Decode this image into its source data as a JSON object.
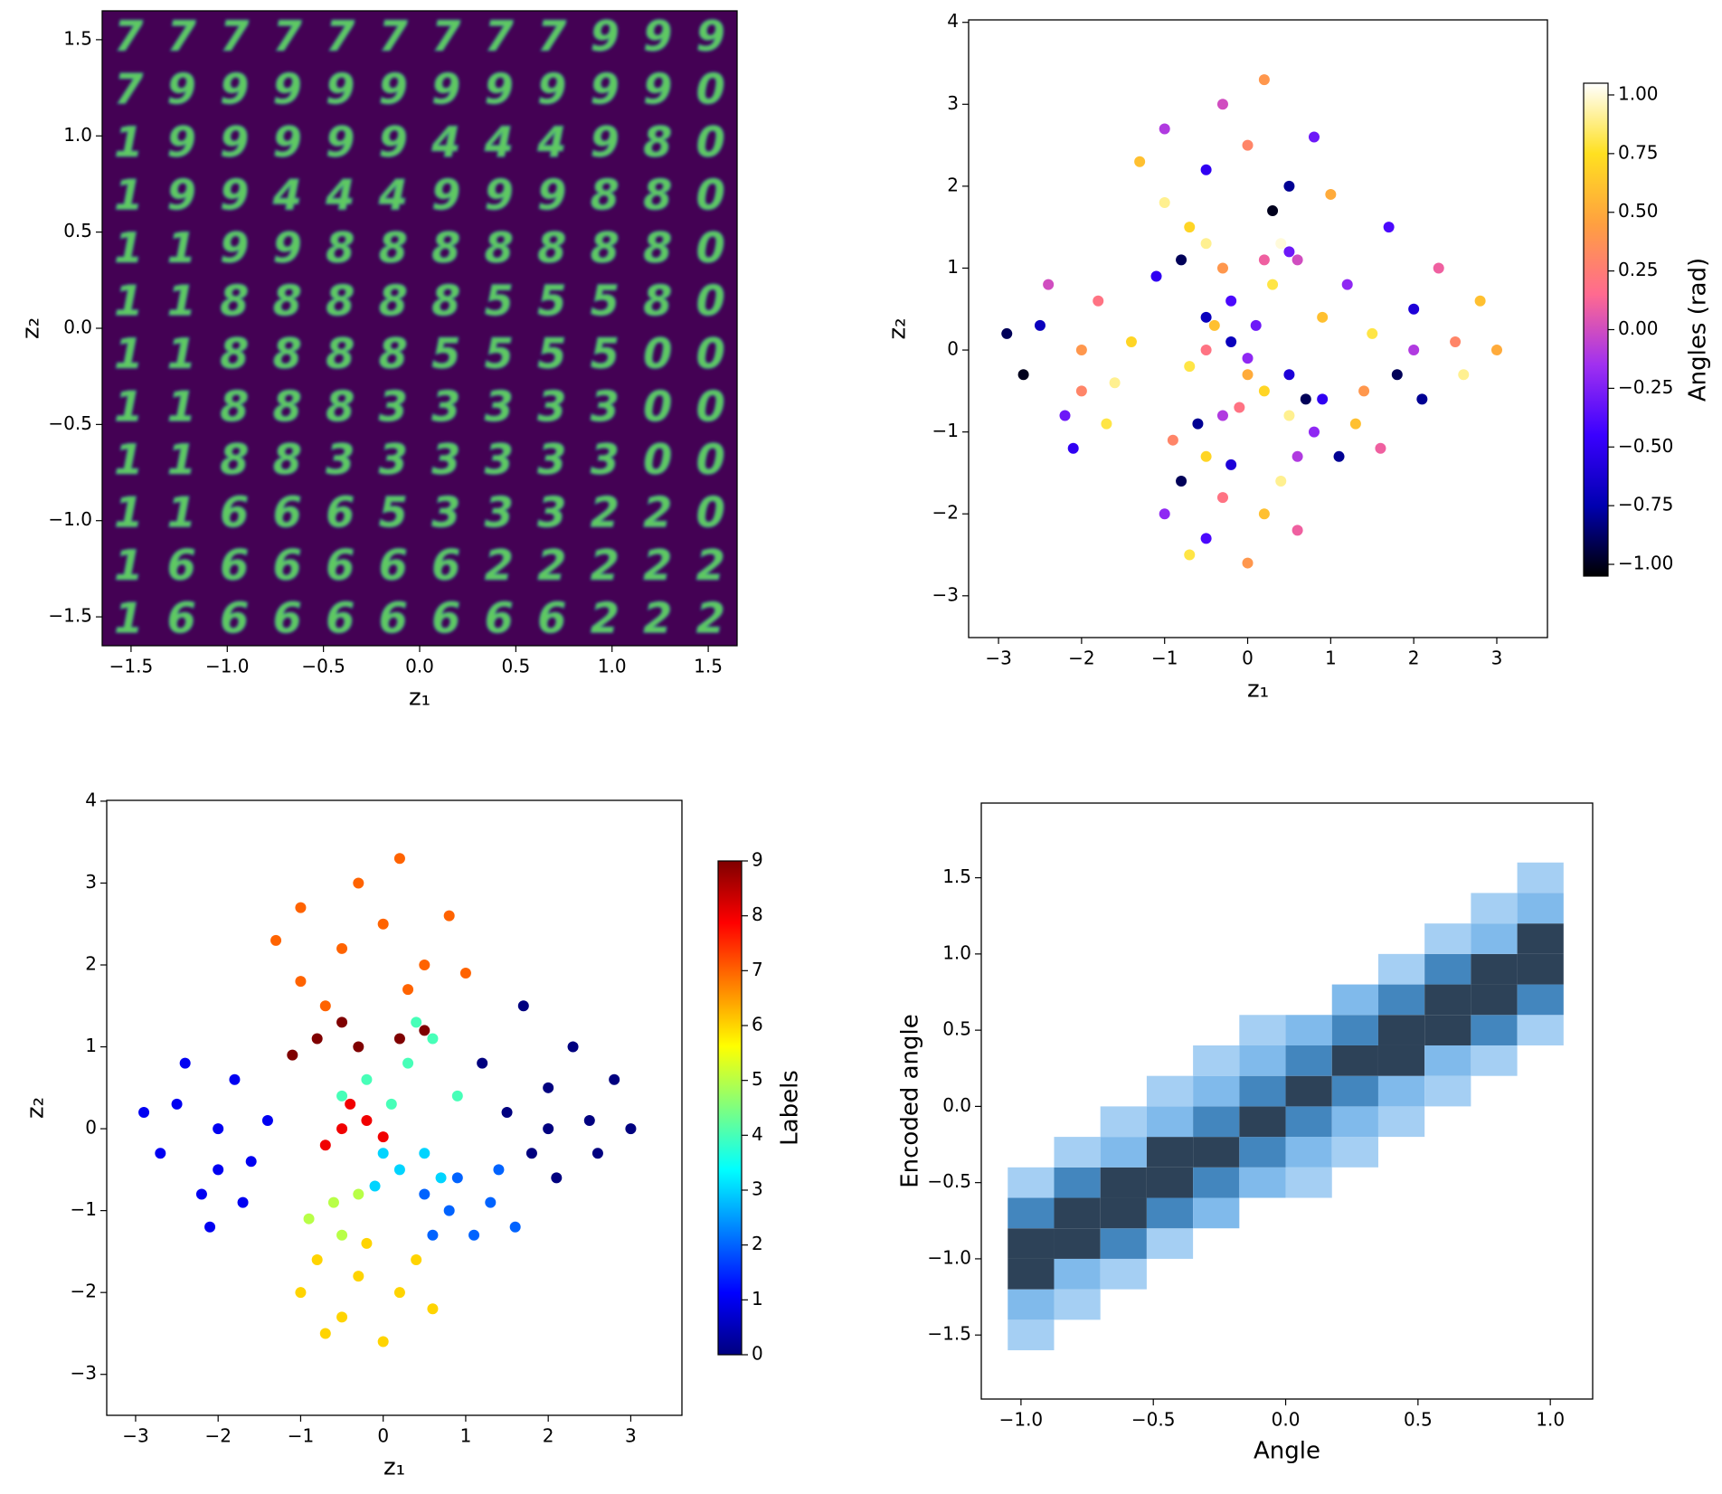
{
  "chart_data": [
    {
      "type": "image_grid",
      "xlabel": "z₁",
      "ylabel": "z₂",
      "xlim": [
        -1.65,
        1.65
      ],
      "ylim": [
        -1.65,
        1.65
      ],
      "xticks": [
        {
          "value": -1.5,
          "label": "−1.5"
        },
        {
          "value": -1,
          "label": "−1.0"
        },
        {
          "value": -0.5,
          "label": "−0.5"
        },
        {
          "value": 0,
          "label": "0.0"
        },
        0.5,
        {
          "value": 1,
          "label": "1.0"
        },
        1.5
      ],
      "yticks": [
        {
          "value": -1.5,
          "label": "−1.5"
        },
        {
          "value": -1,
          "label": "−1.0"
        },
        {
          "value": -0.5,
          "label": "−0.5"
        },
        {
          "value": 0,
          "label": "0.0"
        },
        0.5,
        {
          "value": 1,
          "label": "1.0"
        },
        1.5
      ],
      "background": "#440154",
      "color": "#5ec962",
      "digits": [
        [
          "7",
          "7",
          "7",
          "7",
          "7",
          "7",
          "7",
          "7",
          "7",
          "9",
          "9",
          "9"
        ],
        [
          "7",
          "9",
          "9",
          "9",
          "9",
          "9",
          "9",
          "9",
          "9",
          "9",
          "9",
          "0"
        ],
        [
          "1",
          "9",
          "9",
          "9",
          "9",
          "9",
          "4",
          "4",
          "4",
          "9",
          "8",
          "0"
        ],
        [
          "1",
          "9",
          "9",
          "4",
          "4",
          "4",
          "9",
          "9",
          "9",
          "8",
          "8",
          "0"
        ],
        [
          "1",
          "1",
          "9",
          "9",
          "8",
          "8",
          "8",
          "8",
          "8",
          "8",
          "8",
          "0"
        ],
        [
          "1",
          "1",
          "8",
          "8",
          "8",
          "8",
          "8",
          "5",
          "5",
          "5",
          "8",
          "0"
        ],
        [
          "1",
          "1",
          "8",
          "8",
          "8",
          "8",
          "5",
          "5",
          "5",
          "5",
          "0",
          "0"
        ],
        [
          "1",
          "1",
          "8",
          "8",
          "8",
          "3",
          "3",
          "3",
          "3",
          "3",
          "0",
          "0"
        ],
        [
          "1",
          "1",
          "8",
          "8",
          "3",
          "3",
          "3",
          "3",
          "3",
          "3",
          "0",
          "0"
        ],
        [
          "1",
          "1",
          "6",
          "6",
          "6",
          "5",
          "3",
          "3",
          "3",
          "2",
          "2",
          "0"
        ],
        [
          "1",
          "6",
          "6",
          "6",
          "6",
          "6",
          "6",
          "2",
          "2",
          "2",
          "2",
          "2"
        ],
        [
          "1",
          "6",
          "6",
          "6",
          "6",
          "6",
          "6",
          "6",
          "6",
          "2",
          "2",
          "2"
        ]
      ]
    },
    {
      "type": "scatter",
      "xlabel": "z₁",
      "ylabel": "z₂",
      "clabel": "Angles (rad)",
      "xlim": [
        -3.36,
        3.61
      ],
      "ylim": [
        -3.51,
        4.03
      ],
      "clim": [
        -1.05,
        1.05
      ],
      "xticks": [
        {
          "value": -3,
          "label": "−3"
        },
        {
          "value": -2,
          "label": "−2"
        },
        {
          "value": -1,
          "label": "−1"
        },
        0,
        1,
        2,
        3
      ],
      "yticks": [
        {
          "value": -3,
          "label": "−3"
        },
        {
          "value": -2,
          "label": "−2"
        },
        {
          "value": -1,
          "label": "−1"
        },
        0,
        1,
        2,
        3,
        4
      ],
      "cticks": [
        {
          "value": -1,
          "label": "−1.00"
        },
        {
          "value": -0.75,
          "label": "−0.75"
        },
        {
          "value": -0.5,
          "label": "−0.50"
        },
        {
          "value": -0.25,
          "label": "−0.25"
        },
        {
          "value": 0,
          "label": "0.00"
        },
        0.25,
        {
          "value": 0.5,
          "label": "0.50"
        },
        0.75,
        {
          "value": 1,
          "label": "1.00"
        }
      ],
      "colormap": [
        "#000000",
        "#0000b0",
        "#3a00ff",
        "#a030f0",
        "#ff6a90",
        "#ffa040",
        "#ffe020",
        "#ffffff"
      ],
      "x": [
        1.5,
        2,
        2.5,
        1.8,
        2.3,
        2.8,
        1.2,
        2.1,
        2.6,
        1.7,
        3.0,
        2.0,
        -2,
        -2.5,
        -1.6,
        -2.2,
        -1.8,
        -2.7,
        -1.4,
        -2.1,
        -2.4,
        -1.7,
        -2.9,
        -2.0,
        0.8,
        1.3,
        1.1,
        0.5,
        1.6,
        0.9,
        1.4,
        0.6,
        0.2,
        0.5,
        -0.1,
        0.7,
        0.0,
        -0.2,
        0.3,
        0.6,
        -0.5,
        0.9,
        0.1,
        0.4,
        -0.6,
        -0.9,
        -0.3,
        -0.5,
        -0.3,
        -0.8,
        0.2,
        -0.5,
        0.4,
        -1.0,
        0.0,
        -0.2,
        0.6,
        -0.7,
        -0.5,
        0,
        -1,
        0.5,
        -0.3,
        -1.3,
        0.8,
        -0.7,
        0.3,
        0.2,
        -1.0,
        1.0,
        -0.5,
        -0.2,
        -0.7,
        0.0,
        -0.4,
        -0.8,
        -0.3,
        0.2,
        -1.1,
        -0.5,
        0.5
      ],
      "y": [
        0.2,
        0.5,
        0.1,
        -0.3,
        1.0,
        0.6,
        0.8,
        -0.6,
        -0.3,
        1.5,
        0.0,
        0.0,
        0,
        0.3,
        -0.4,
        -0.8,
        0.6,
        -0.3,
        0.1,
        -1.2,
        0.8,
        -0.9,
        0.2,
        -0.5,
        -1,
        -0.9,
        -1.3,
        -0.8,
        -1.2,
        -0.6,
        -0.5,
        -1.3,
        -0.5,
        -0.3,
        -0.7,
        -0.6,
        -0.3,
        0.6,
        0.8,
        1.1,
        0.4,
        0.4,
        0.3,
        1.3,
        -0.9,
        -1.1,
        -0.8,
        -1.3,
        -1.8,
        -1.6,
        -2.0,
        -2.3,
        -1.6,
        -2.0,
        -2.6,
        -1.4,
        -2.2,
        -2.5,
        2.2,
        2.5,
        1.8,
        2.0,
        3.0,
        2.3,
        2.6,
        1.5,
        1.7,
        3.3,
        2.7,
        1.9,
        0.0,
        0.1,
        -0.2,
        -0.1,
        0.3,
        1.1,
        1.0,
        1.1,
        0.9,
        1.3,
        1.2
      ],
      "c": [
        0.8,
        -0.6,
        0.3,
        -0.9,
        0.1,
        0.6,
        -0.2,
        -0.8,
        0.9,
        -0.4,
        0.5,
        -0.1,
        0.4,
        -0.7,
        0.9,
        -0.3,
        0.2,
        -1.0,
        0.7,
        -0.5,
        0.0,
        0.8,
        -0.9,
        0.3,
        -0.2,
        0.6,
        -0.8,
        0.9,
        0.1,
        -0.5,
        0.4,
        -0.1,
        0.7,
        -0.6,
        0.2,
        -0.9,
        0.5,
        -0.4,
        0.8,
        0.0,
        -0.7,
        0.6,
        -0.3,
        1.0,
        -0.8,
        0.3,
        -0.1,
        0.7,
        0.2,
        -0.9,
        0.6,
        -0.4,
        0.9,
        -0.2,
        0.4,
        -0.6,
        0.1,
        0.8,
        -0.5,
        0.3,
        0.9,
        -0.8,
        0.0,
        0.6,
        -0.3,
        0.7,
        -1.0,
        0.4,
        -0.1,
        0.5,
        0.2,
        -0.7,
        0.8,
        -0.2,
        0.6,
        -0.9,
        0.4,
        0.1,
        -0.5,
        0.9,
        -0.3
      ]
    },
    {
      "type": "scatter",
      "xlabel": "z₁",
      "ylabel": "z₂",
      "clabel": "Labels",
      "xlim": [
        -3.35,
        3.62
      ],
      "ylim": [
        -3.5,
        4.01
      ],
      "clim": [
        0,
        9
      ],
      "xticks": [
        {
          "value": -3,
          "label": "−3"
        },
        {
          "value": -2,
          "label": "−2"
        },
        {
          "value": -1,
          "label": "−1"
        },
        0,
        1,
        2,
        3
      ],
      "yticks": [
        {
          "value": -3,
          "label": "−3"
        },
        {
          "value": -2,
          "label": "−2"
        },
        {
          "value": -1,
          "label": "−1"
        },
        0,
        1,
        2,
        3,
        4
      ],
      "cticks": [
        0,
        1,
        2,
        3,
        4,
        5,
        6,
        7,
        8,
        9
      ],
      "colormap": [
        "#00007f",
        "#0000ff",
        "#007fff",
        "#00ffff",
        "#7fff7f",
        "#ffff00",
        "#ff7f00",
        "#ff0000",
        "#7f0000"
      ],
      "x": [
        1.5,
        2,
        2.5,
        1.8,
        2.3,
        2.8,
        1.2,
        2.1,
        2.6,
        1.7,
        3.0,
        2.0,
        -2,
        -2.5,
        -1.6,
        -2.2,
        -1.8,
        -2.7,
        -1.4,
        -2.1,
        -2.4,
        -1.7,
        -2.9,
        -2.0,
        0.8,
        1.3,
        1.1,
        0.5,
        1.6,
        0.9,
        1.4,
        0.6,
        0.2,
        0.5,
        -0.1,
        0.7,
        0.0,
        -0.2,
        0.3,
        0.6,
        -0.5,
        0.9,
        0.1,
        0.4,
        -0.6,
        -0.9,
        -0.3,
        -0.5,
        -0.3,
        -0.8,
        0.2,
        -0.5,
        0.4,
        -1.0,
        0.0,
        -0.2,
        0.6,
        -0.7,
        -0.5,
        0,
        -1,
        0.5,
        -0.3,
        -1.3,
        0.8,
        -0.7,
        0.3,
        0.2,
        -1.0,
        1.0,
        -0.5,
        -0.2,
        -0.7,
        0.0,
        -0.4,
        -0.8,
        -0.3,
        0.2,
        -1.1,
        -0.5,
        0.5
      ],
      "y": [
        0.2,
        0.5,
        0.1,
        -0.3,
        1.0,
        0.6,
        0.8,
        -0.6,
        -0.3,
        1.5,
        0.0,
        0.0,
        0,
        0.3,
        -0.4,
        -0.8,
        0.6,
        -0.3,
        0.1,
        -1.2,
        0.8,
        -0.9,
        0.2,
        -0.5,
        -1,
        -0.9,
        -1.3,
        -0.8,
        -1.2,
        -0.6,
        -0.5,
        -1.3,
        -0.5,
        -0.3,
        -0.7,
        -0.6,
        -0.3,
        0.6,
        0.8,
        1.1,
        0.4,
        0.4,
        0.3,
        1.3,
        -0.9,
        -1.1,
        -0.8,
        -1.3,
        -1.8,
        -1.6,
        -2.0,
        -2.3,
        -1.6,
        -2.0,
        -2.6,
        -1.4,
        -2.2,
        -2.5,
        2.2,
        2.5,
        1.8,
        2.0,
        3.0,
        2.3,
        2.6,
        1.5,
        1.7,
        3.3,
        2.7,
        1.9,
        0.0,
        0.1,
        -0.2,
        -0.1,
        0.3,
        1.1,
        1.0,
        1.1,
        0.9,
        1.3,
        1.2
      ],
      "c": [
        0,
        0,
        0,
        0,
        0,
        0,
        0,
        0,
        0,
        0,
        0,
        0,
        1,
        1,
        1,
        1,
        1,
        1,
        1,
        1,
        1,
        1,
        1,
        1,
        2,
        2,
        2,
        2,
        2,
        2,
        2,
        2,
        3,
        3,
        3,
        3,
        3,
        4,
        4,
        4,
        4,
        4,
        4,
        4,
        5,
        5,
        5,
        5,
        6,
        6,
        6,
        6,
        6,
        6,
        6,
        6,
        6,
        6,
        7,
        7,
        7,
        7,
        7,
        7,
        7,
        7,
        7,
        7,
        7,
        7,
        8,
        8,
        8,
        8,
        8,
        9,
        9,
        9,
        9,
        9,
        9
      ]
    },
    {
      "type": "hist2d",
      "xlabel": "Angle",
      "ylabel": "Encoded angle",
      "xlim": [
        -1.15,
        1.16
      ],
      "ylim": [
        -1.92,
        1.99
      ],
      "clim": [
        0,
        40
      ],
      "xticks": [
        {
          "value": -1,
          "label": "−1.0"
        },
        {
          "value": -0.5,
          "label": "−0.5"
        },
        {
          "value": 0,
          "label": "0.0"
        },
        0.5,
        {
          "value": 1,
          "label": "1.0"
        }
      ],
      "yticks": [
        {
          "value": -1.5,
          "label": "−1.5"
        },
        {
          "value": -1,
          "label": "−1.0"
        },
        {
          "value": -0.5,
          "label": "−0.5"
        },
        {
          "value": 0,
          "label": "0.0"
        },
        0.5,
        {
          "value": 1,
          "label": "1.0"
        },
        1.5
      ],
      "colormap": [
        "#b5d8f6",
        "#4a9ce0",
        "#2d4258"
      ],
      "xbins": [
        -1.05,
        -0.875,
        -0.7,
        -0.525,
        -0.35,
        -0.175,
        0,
        0.175,
        0.35,
        0.525,
        0.7,
        0.875,
        1.05
      ],
      "ybins": [
        -1.6,
        -1.4,
        -1.2,
        -1.0,
        -0.8,
        -0.6,
        -0.4,
        -0.2,
        0,
        0.2,
        0.4,
        0.6,
        0.8,
        1.0,
        1.2,
        1.4,
        1.6
      ],
      "counts": [
        [
          3,
          10,
          40,
          40,
          25,
          3,
          0,
          0,
          0,
          0,
          0,
          0,
          0,
          0,
          0,
          0
        ],
        [
          0,
          3,
          10,
          40,
          40,
          25,
          3,
          0,
          0,
          0,
          0,
          0,
          0,
          0,
          0,
          0
        ],
        [
          0,
          0,
          3,
          25,
          40,
          40,
          10,
          3,
          0,
          0,
          0,
          0,
          0,
          0,
          0,
          0
        ],
        [
          0,
          0,
          0,
          3,
          25,
          40,
          40,
          10,
          3,
          0,
          0,
          0,
          0,
          0,
          0,
          0
        ],
        [
          0,
          0,
          0,
          0,
          10,
          25,
          40,
          25,
          10,
          3,
          0,
          0,
          0,
          0,
          0,
          0
        ],
        [
          0,
          0,
          0,
          0,
          0,
          10,
          25,
          40,
          25,
          10,
          3,
          0,
          0,
          0,
          0,
          0
        ],
        [
          0,
          0,
          0,
          0,
          0,
          3,
          10,
          25,
          40,
          25,
          10,
          0,
          0,
          0,
          0,
          0
        ],
        [
          0,
          0,
          0,
          0,
          0,
          0,
          3,
          10,
          25,
          40,
          25,
          10,
          0,
          0,
          0,
          0
        ],
        [
          0,
          0,
          0,
          0,
          0,
          0,
          0,
          3,
          10,
          40,
          40,
          25,
          3,
          0,
          0,
          0
        ],
        [
          0,
          0,
          0,
          0,
          0,
          0,
          0,
          0,
          3,
          10,
          40,
          40,
          25,
          3,
          0,
          0
        ],
        [
          0,
          0,
          0,
          0,
          0,
          0,
          0,
          0,
          0,
          3,
          25,
          40,
          40,
          10,
          3,
          0
        ],
        [
          0,
          0,
          0,
          0,
          0,
          0,
          0,
          0,
          0,
          0,
          3,
          25,
          40,
          40,
          10,
          3
        ]
      ]
    }
  ]
}
